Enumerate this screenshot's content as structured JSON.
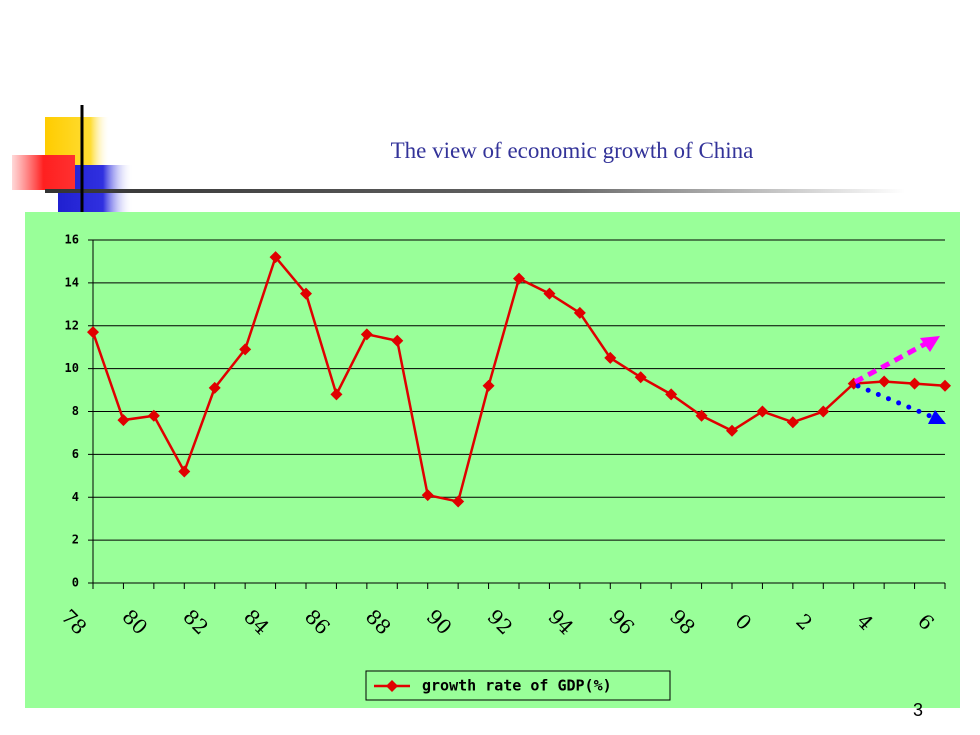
{
  "slide_title": "The view of economic growth of China",
  "page_number": "3",
  "chart_data": {
    "type": "line",
    "categories": [
      "78",
      null,
      "80",
      null,
      "82",
      null,
      "84",
      null,
      "86",
      null,
      "88",
      null,
      "90",
      null,
      "92",
      null,
      "94",
      null,
      "96",
      null,
      "98",
      null,
      "0",
      null,
      "2",
      null,
      "4",
      null,
      "6"
    ],
    "series": [
      {
        "name": "growth rate of GDP(%)",
        "color": "#e00000",
        "values": [
          11.7,
          7.6,
          7.8,
          5.2,
          9.1,
          10.9,
          15.2,
          13.5,
          8.8,
          11.6,
          11.3,
          4.1,
          3.8,
          9.2,
          14.2,
          13.5,
          12.6,
          10.5,
          9.6,
          8.8,
          7.8,
          7.1,
          8.0,
          7.5,
          8.0,
          9.3,
          9.4,
          9.3,
          9.2
        ]
      }
    ],
    "ylim": [
      0,
      16
    ],
    "yticks": [
      0,
      2,
      4,
      6,
      8,
      10,
      12,
      14,
      16
    ],
    "grid": true,
    "legend": "bottom"
  }
}
